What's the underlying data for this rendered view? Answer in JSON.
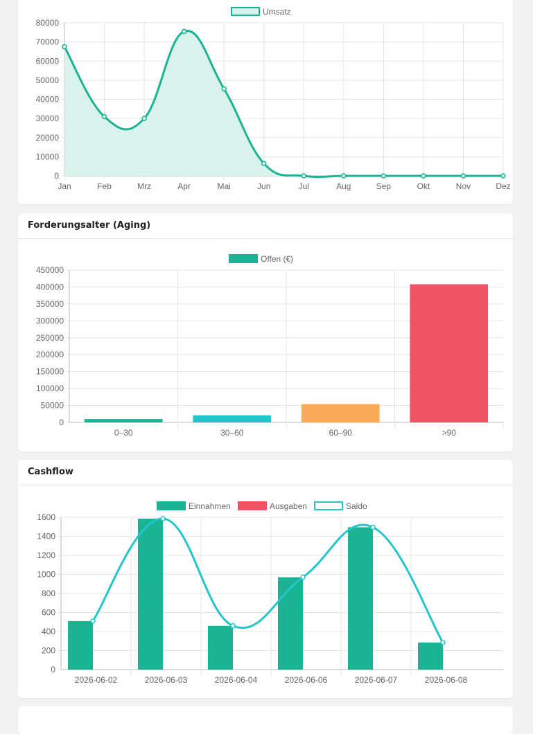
{
  "colors": {
    "teal": "#1ab394",
    "teal_fill": "#d9f3ec",
    "cyan": "#23c6c8",
    "orange": "#f8ac59",
    "red": "#ed5565",
    "grid": "#e5e5e5",
    "axis": "#666666"
  },
  "cards": {
    "revenue": {
      "title": ""
    },
    "aging": {
      "title": "Forderungsalter (Aging)"
    },
    "cashflow": {
      "title": "Cashflow"
    }
  },
  "chart_data": [
    {
      "id": "revenue",
      "type": "area",
      "categories": [
        "Jan",
        "Feb",
        "Mrz",
        "Apr",
        "Mai",
        "Jun",
        "Jul",
        "Aug",
        "Sep",
        "Okt",
        "Nov",
        "Dez"
      ],
      "series": [
        {
          "name": "Umsatz",
          "values": [
            67500,
            31000,
            30000,
            75500,
            45500,
            6500,
            0,
            0,
            0,
            0,
            0,
            0
          ]
        }
      ],
      "ylim": [
        0,
        80000
      ],
      "yticks": [
        0,
        10000,
        20000,
        30000,
        40000,
        50000,
        60000,
        70000,
        80000
      ],
      "grid": true,
      "legend": "top"
    },
    {
      "id": "aging",
      "type": "bar",
      "categories": [
        "0–30",
        "30–60",
        "60–90",
        ">90"
      ],
      "series": [
        {
          "name": "Offen (€)",
          "values": [
            10000,
            21000,
            54000,
            408000
          ],
          "colors": [
            "#1ab394",
            "#23c6c8",
            "#f8ac59",
            "#ed5565"
          ]
        }
      ],
      "ylim": [
        0,
        450000
      ],
      "yticks": [
        0,
        50000,
        100000,
        150000,
        200000,
        250000,
        300000,
        350000,
        400000,
        450000
      ],
      "grid": true,
      "legend": "top"
    },
    {
      "id": "cashflow",
      "type": "bar",
      "categories": [
        "2026-06-02",
        "2026-06-03",
        "2026-06-04",
        "2026-06-06",
        "2026-06-07",
        "2026-06-08"
      ],
      "series": [
        {
          "name": "Einnahmen",
          "type": "bar",
          "values": [
            510,
            1585,
            460,
            970,
            1495,
            285
          ]
        },
        {
          "name": "Ausgaben",
          "type": "bar",
          "values": [
            0,
            0,
            0,
            0,
            0,
            0
          ]
        },
        {
          "name": "Saldo",
          "type": "line",
          "values": [
            510,
            1585,
            460,
            970,
            1495,
            285
          ]
        }
      ],
      "ylim": [
        0,
        1600
      ],
      "yticks": [
        0,
        200,
        400,
        600,
        800,
        1000,
        1200,
        1400,
        1600
      ],
      "grid": true,
      "legend": "top"
    }
  ]
}
